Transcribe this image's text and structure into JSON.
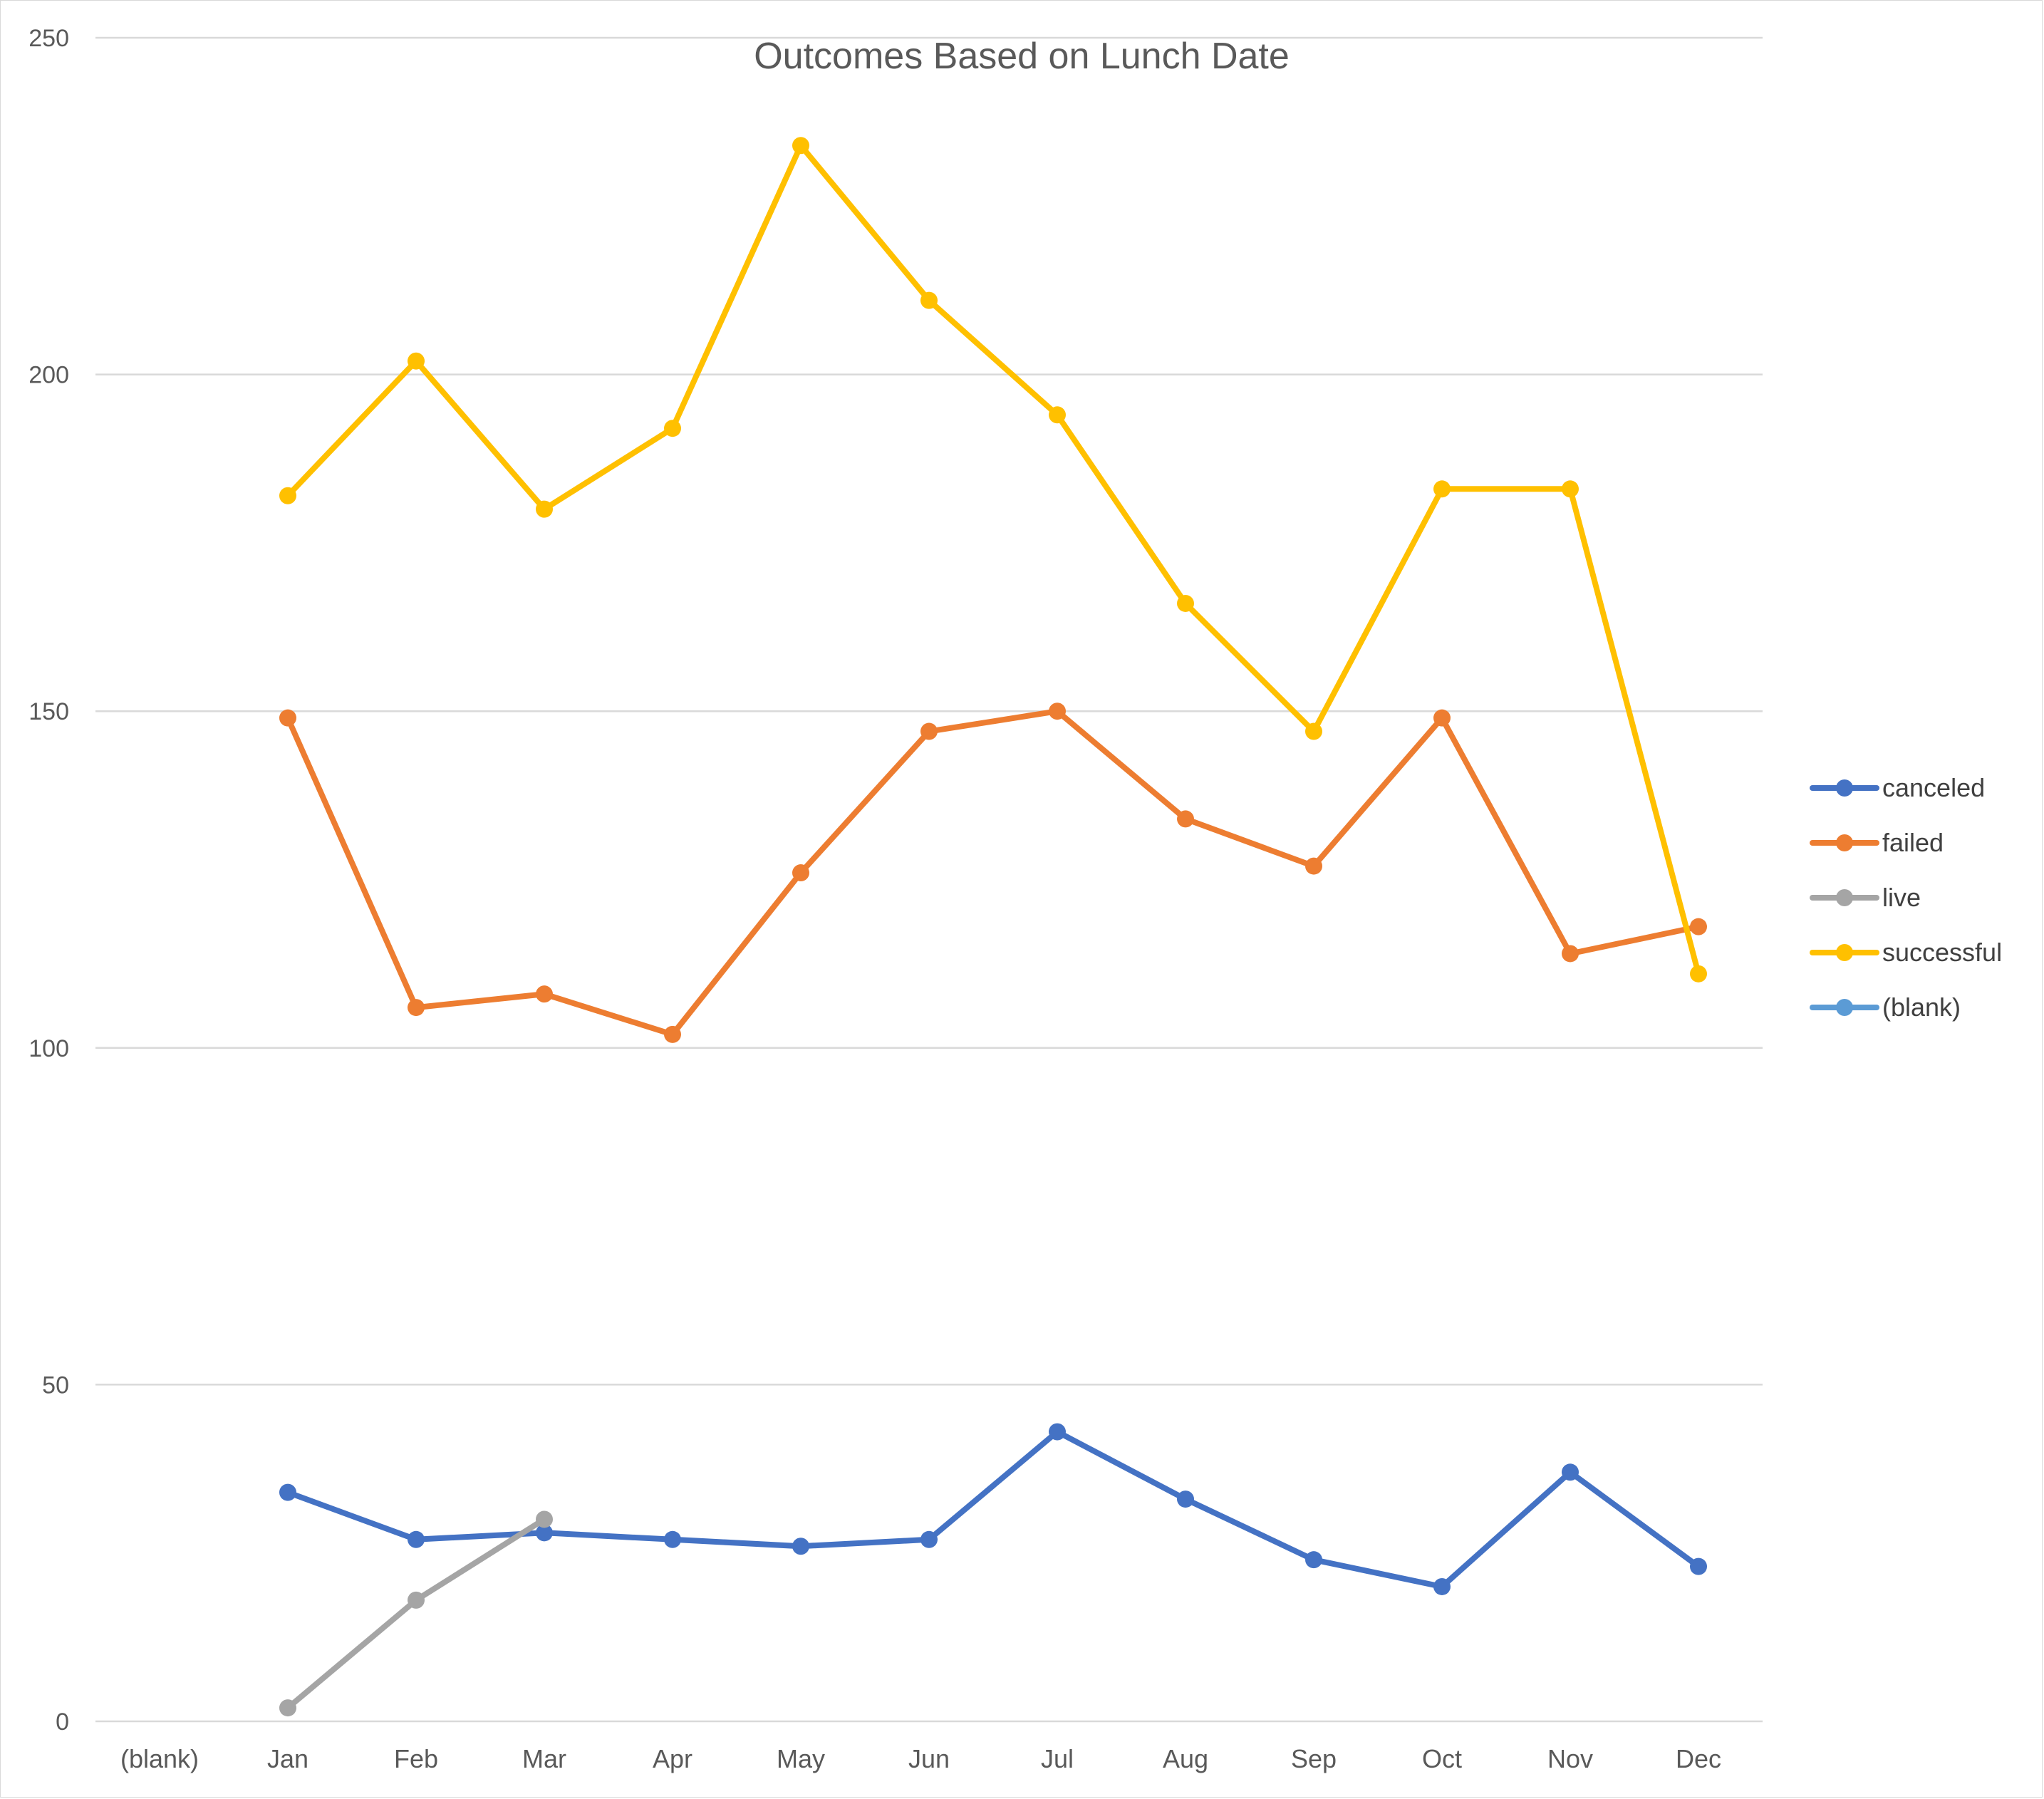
{
  "chart_data": {
    "type": "line",
    "title": "Outcomes Based on Lunch Date",
    "xlabel": "",
    "ylabel": "",
    "categories": [
      "(blank)",
      "Jan",
      "Feb",
      "Mar",
      "Apr",
      "May",
      "Jun",
      "Jul",
      "Aug",
      "Sep",
      "Oct",
      "Nov",
      "Dec"
    ],
    "ylim": [
      0,
      250
    ],
    "yticks": [
      0,
      50,
      100,
      150,
      200,
      250
    ],
    "grid": true,
    "legend_position": "right",
    "series": [
      {
        "name": "canceled",
        "color": "#4472c4",
        "values": [
          null,
          34,
          27,
          28,
          27,
          26,
          27,
          43,
          33,
          24,
          20,
          37,
          23
        ]
      },
      {
        "name": "failed",
        "color": "#ed7d31",
        "values": [
          null,
          149,
          106,
          108,
          102,
          126,
          147,
          150,
          134,
          127,
          149,
          114,
          118
        ]
      },
      {
        "name": "live",
        "color": "#a5a5a5",
        "values": [
          null,
          2,
          18,
          30,
          null,
          null,
          null,
          null,
          null,
          null,
          null,
          null,
          null
        ]
      },
      {
        "name": "successful",
        "color": "#ffc000",
        "values": [
          null,
          182,
          202,
          180,
          192,
          234,
          211,
          194,
          166,
          147,
          183,
          183,
          111
        ]
      },
      {
        "name": "(blank)",
        "color": "#5b9bd5",
        "values": [
          null,
          null,
          null,
          null,
          null,
          null,
          null,
          null,
          null,
          null,
          null,
          null,
          null
        ]
      }
    ]
  }
}
